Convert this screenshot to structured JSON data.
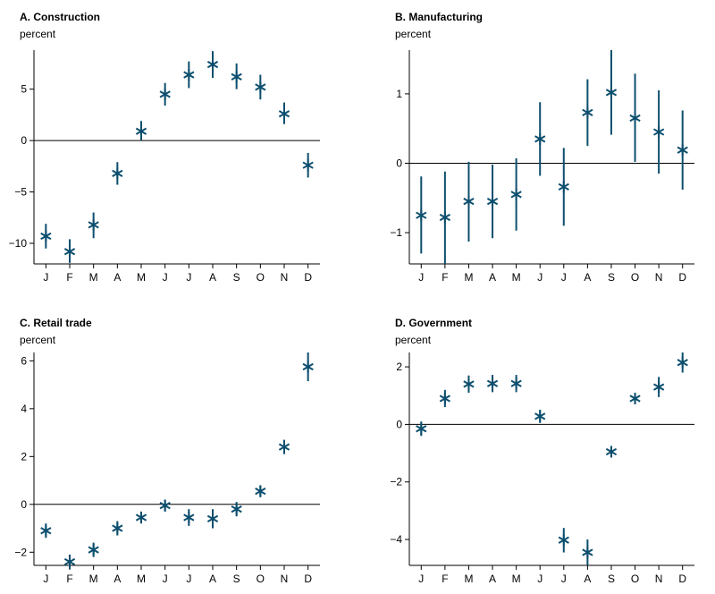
{
  "series_color": "#0d4f6e",
  "chart_data": [
    {
      "type": "scatter",
      "title": "A. Construction",
      "ylabel": "percent",
      "categories": [
        "J",
        "F",
        "M",
        "A",
        "M",
        "J",
        "J",
        "A",
        "S",
        "O",
        "N",
        "D"
      ],
      "values": [
        -9.3,
        -10.8,
        -8.2,
        -3.2,
        0.9,
        4.5,
        6.4,
        7.4,
        6.2,
        5.2,
        2.6,
        -2.4
      ],
      "lower": [
        -10.5,
        -11.9,
        -9.5,
        -4.3,
        0.0,
        3.4,
        5.1,
        6.1,
        5.0,
        4.0,
        1.6,
        -3.6
      ],
      "upper": [
        -8.1,
        -9.6,
        -7.0,
        -2.1,
        1.9,
        5.6,
        7.7,
        8.7,
        7.5,
        6.4,
        3.7,
        -1.2
      ],
      "ylim": [
        -12,
        8.8
      ],
      "yticks": [
        5,
        0,
        -5,
        -10
      ],
      "ytick_labels": [
        "5",
        "0",
        "−5",
        "−10"
      ],
      "reference_line_y": 0
    },
    {
      "type": "scatter",
      "title": "B. Manufacturing",
      "ylabel": "percent",
      "categories": [
        "J",
        "F",
        "M",
        "A",
        "M",
        "J",
        "J",
        "A",
        "S",
        "O",
        "N",
        "D"
      ],
      "values": [
        -0.75,
        -0.78,
        -0.55,
        -0.55,
        -0.45,
        0.35,
        -0.34,
        0.73,
        1.02,
        0.65,
        0.45,
        0.19
      ],
      "lower": [
        -1.3,
        -1.45,
        -1.13,
        -1.08,
        -0.97,
        -0.18,
        -0.9,
        0.25,
        0.41,
        0.02,
        -0.15,
        -0.38
      ],
      "upper": [
        -0.19,
        -0.12,
        0.02,
        -0.02,
        0.07,
        0.88,
        0.22,
        1.21,
        1.63,
        1.29,
        1.05,
        0.76
      ],
      "ylim": [
        -1.45,
        1.63
      ],
      "yticks": [
        1,
        0,
        -1
      ],
      "ytick_labels": [
        "1",
        "0",
        "−1"
      ],
      "reference_line_y": 0
    },
    {
      "type": "scatter",
      "title": "C. Retail trade",
      "ylabel": "percent",
      "categories": [
        "J",
        "F",
        "M",
        "A",
        "M",
        "J",
        "J",
        "A",
        "S",
        "O",
        "N",
        "D"
      ],
      "values": [
        -1.1,
        -2.4,
        -1.9,
        -1.0,
        -0.55,
        -0.05,
        -0.55,
        -0.6,
        -0.2,
        0.55,
        2.4,
        5.75
      ],
      "lower": [
        -1.4,
        -2.7,
        -2.2,
        -1.3,
        -0.8,
        -0.3,
        -0.9,
        -1.0,
        -0.5,
        0.3,
        2.1,
        5.15
      ],
      "upper": [
        -0.8,
        -2.1,
        -1.6,
        -0.7,
        -0.3,
        0.2,
        -0.2,
        -0.2,
        0.1,
        0.8,
        2.7,
        6.35
      ],
      "ylim": [
        -2.55,
        6.35
      ],
      "yticks": [
        6,
        4,
        2,
        0,
        -2
      ],
      "ytick_labels": [
        "6",
        "4",
        "2",
        "0",
        "−2"
      ],
      "reference_line_y": 0
    },
    {
      "type": "scatter",
      "title": "D. Government",
      "ylabel": "percent",
      "categories": [
        "J",
        "F",
        "M",
        "A",
        "M",
        "J",
        "J",
        "A",
        "S",
        "O",
        "N",
        "D"
      ],
      "values": [
        -0.15,
        0.9,
        1.4,
        1.42,
        1.42,
        0.28,
        -4.02,
        -4.45,
        -0.95,
        0.9,
        1.3,
        2.15
      ],
      "lower": [
        -0.4,
        0.6,
        1.1,
        1.12,
        1.12,
        0.05,
        -4.45,
        -4.9,
        -1.15,
        0.7,
        0.95,
        1.8
      ],
      "upper": [
        0.1,
        1.2,
        1.7,
        1.72,
        1.72,
        0.51,
        -3.6,
        -4.0,
        -0.75,
        1.1,
        1.65,
        2.5
      ],
      "ylim": [
        -4.9,
        2.5
      ],
      "yticks": [
        2,
        0,
        -2,
        -4
      ],
      "ytick_labels": [
        "2",
        "0",
        "−2",
        "−4"
      ],
      "reference_line_y": 0
    }
  ]
}
